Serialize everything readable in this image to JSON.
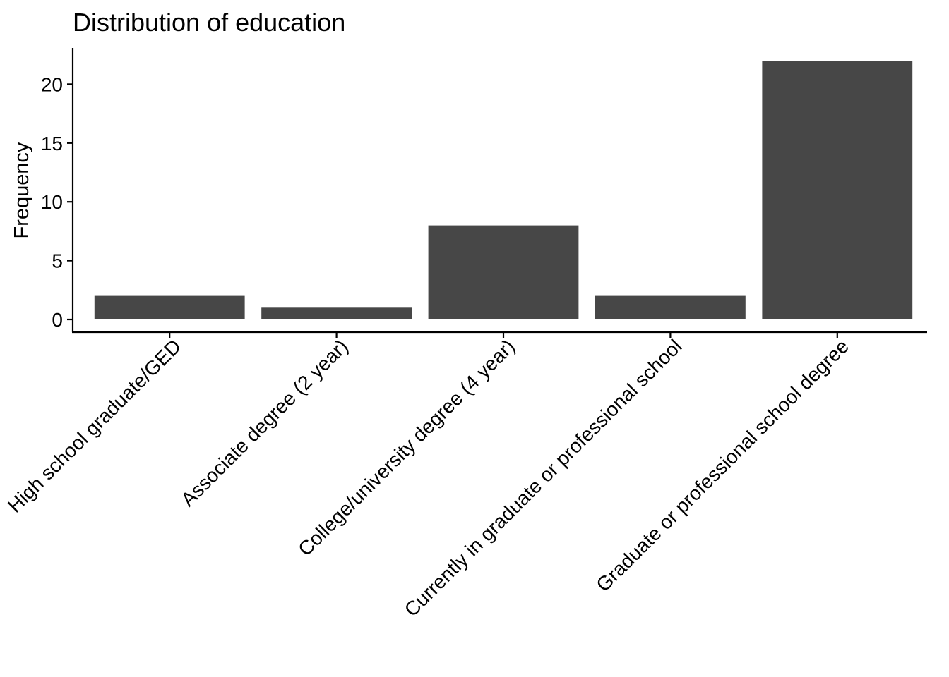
{
  "chart_data": {
    "type": "bar",
    "title": "Distribution of education",
    "xlabel": "",
    "ylabel": "Frequency",
    "categories": [
      "High school graduate/GED",
      "Associate degree (2 year)",
      "College/university degree (4 year)",
      "Currently in graduate or professional school",
      "Graduate or professional school degree"
    ],
    "values": [
      2,
      1,
      8,
      2,
      22
    ],
    "ylim": [
      0,
      23
    ],
    "yticks": [
      0,
      5,
      10,
      15,
      20
    ],
    "bar_color": "#474747",
    "grid": false,
    "legend": "none"
  }
}
